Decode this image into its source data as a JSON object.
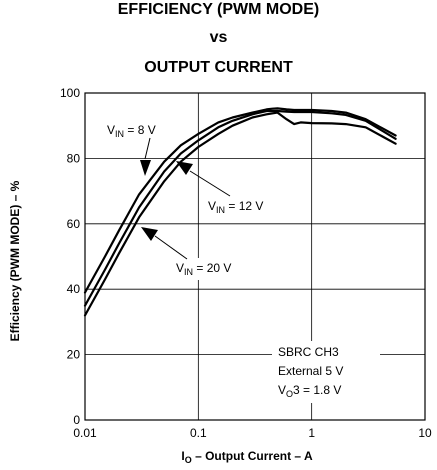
{
  "chart_data": {
    "type": "line",
    "title": [
      "EFFICIENCY (PWM MODE)",
      "vs",
      "OUTPUT CURRENT"
    ],
    "xlabel": {
      "prefix": "I",
      "subscript": "O",
      "suffix": " – Output Current – A"
    },
    "ylabel": "Efficiency (PWM MODE) – %",
    "xscale": "log",
    "xlim": [
      0.01,
      10
    ],
    "ylim": [
      0,
      100
    ],
    "x_ticks": [
      0.01,
      0.1,
      1,
      10
    ],
    "x_tick_labels": [
      "0.01",
      "0.1",
      "1",
      "10"
    ],
    "y_ticks": [
      0,
      20,
      40,
      60,
      80,
      100
    ],
    "y_tick_labels": [
      "0",
      "20",
      "40",
      "60",
      "80",
      "100"
    ],
    "grid": true,
    "series": [
      {
        "name": "VIN = 8 V",
        "label": {
          "prefix": "V",
          "subscript": "IN",
          "suffix": " = 8 V"
        },
        "x": [
          0.01,
          0.015,
          0.02,
          0.03,
          0.05,
          0.07,
          0.1,
          0.15,
          0.2,
          0.3,
          0.4,
          0.45,
          0.5,
          0.6,
          0.7,
          0.8,
          1,
          1.5,
          2,
          3,
          5.5
        ],
        "y": [
          39,
          50,
          58,
          69,
          79,
          84,
          87.5,
          91,
          92.5,
          94,
          95,
          95.2,
          95.3,
          95,
          94.8,
          94.8,
          94.8,
          94.5,
          94,
          92,
          87
        ]
      },
      {
        "name": "VIN = 12 V",
        "label": {
          "prefix": "V",
          "subscript": "IN",
          "suffix": " = 12 V"
        },
        "x": [
          0.01,
          0.015,
          0.02,
          0.03,
          0.05,
          0.07,
          0.1,
          0.15,
          0.2,
          0.3,
          0.4,
          0.5,
          0.6,
          0.7,
          0.8,
          1,
          1.5,
          2,
          3,
          5.5
        ],
        "y": [
          35,
          46,
          54,
          65,
          76,
          81.5,
          85.5,
          89.5,
          91.5,
          93.5,
          94.5,
          94.5,
          94.3,
          94.2,
          94.2,
          94.2,
          93.8,
          93.3,
          91.5,
          86
        ]
      },
      {
        "name": "VIN = 20 V",
        "label": {
          "prefix": "V",
          "subscript": "IN",
          "suffix": " = 20 V"
        },
        "x": [
          0.01,
          0.015,
          0.02,
          0.03,
          0.05,
          0.07,
          0.1,
          0.15,
          0.2,
          0.3,
          0.4,
          0.5,
          0.6,
          0.7,
          0.8,
          1,
          1.5,
          2,
          3,
          5.5
        ],
        "y": [
          32,
          43,
          51,
          62,
          73,
          79,
          83.5,
          87.5,
          90,
          92.5,
          93.5,
          94,
          92,
          90.5,
          91,
          90.8,
          90.7,
          90.5,
          89.5,
          84.5
        ]
      }
    ],
    "annotations": [
      {
        "name": "SBRC CH3",
        "text": "SBRC CH3"
      },
      {
        "name": "External 5 V",
        "text": "External 5 V"
      },
      {
        "name": "VO3 = 1.8 V",
        "prefix": "V",
        "subscript": "O",
        "suffix": "3 = 1.8 V"
      }
    ],
    "colors": {
      "line": "#000000",
      "grid": "#000000",
      "background": "#ffffff"
    }
  }
}
